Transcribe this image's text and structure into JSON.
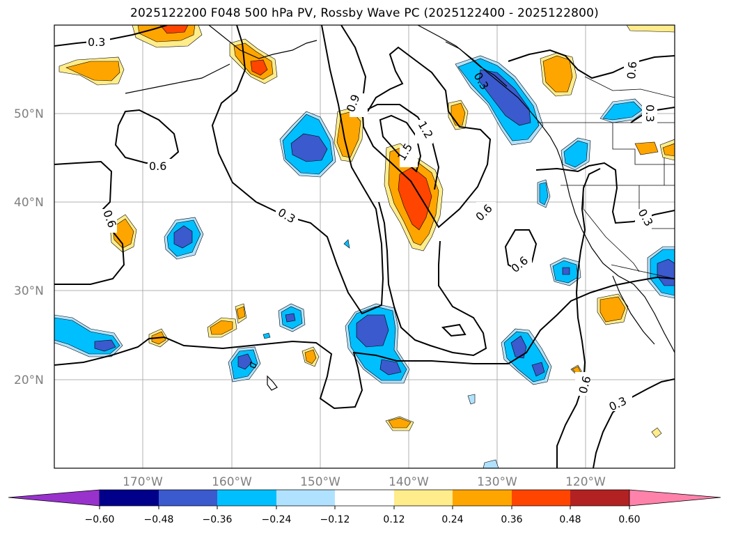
{
  "title": "2025122200 F048 500 hPa PV, Rossby Wave PC (2025122400 - 2025122800)",
  "map": {
    "lat_labels": [
      "50°N",
      "40°N",
      "30°N",
      "20°N"
    ],
    "lon_labels": [
      "170°W",
      "160°W",
      "150°W",
      "140°W",
      "130°W",
      "120°W"
    ],
    "contour_labels": [
      "0.3",
      "0.6",
      "0.6",
      "0.9",
      "1.2",
      "1.5",
      "0.3",
      "0.6",
      "0.6",
      "0.6",
      "0.3",
      "0.3",
      "0.6",
      "0.3",
      "0.3"
    ]
  },
  "colorbar": {
    "ticks": [
      "−0.60",
      "−0.48",
      "−0.36",
      "−0.24",
      "−0.12",
      "0.12",
      "0.24",
      "0.36",
      "0.48",
      "0.60"
    ],
    "colors": [
      "#9932cc",
      "#00008b",
      "#3a5acd",
      "#00bfff",
      "#b0e2ff",
      "#ffffff",
      "#ffec8b",
      "#ffa500",
      "#ff4500",
      "#b22222",
      "#ff82ab"
    ]
  },
  "shading_colors": {
    "pos_light": "#ffec8b",
    "pos_mid": "#ffa500",
    "pos_strong": "#ff4500",
    "neg_light": "#b0e2ff",
    "neg_mid": "#00bfff",
    "neg_strong": "#3a5acd"
  }
}
